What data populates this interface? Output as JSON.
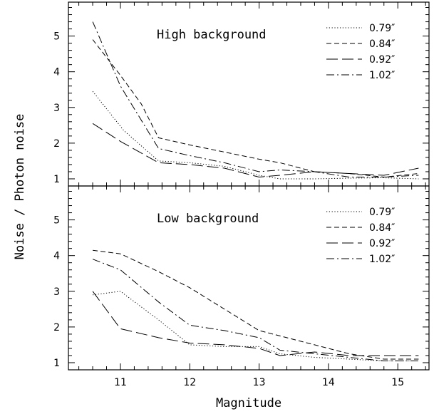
{
  "chart_data": [
    {
      "type": "line",
      "title": "High background",
      "xlabel": "Magnitude",
      "ylabel": "Noise / Photon noise",
      "xlim": [
        10.25,
        15.45
      ],
      "ylim": [
        0.8,
        5.95
      ],
      "x_ticks": [
        11,
        12,
        13,
        14,
        15
      ],
      "y_ticks": [
        1,
        2,
        3,
        4,
        5
      ],
      "legend_position": "top-right",
      "series": [
        {
          "name": "0.79″",
          "dash": "dotted",
          "x": [
            10.6,
            11.05,
            11.55,
            12.0,
            12.5,
            13.0,
            13.3,
            13.8,
            14.3,
            14.8,
            15.3
          ],
          "y": [
            3.45,
            2.35,
            1.5,
            1.45,
            1.35,
            1.1,
            1.0,
            1.0,
            1.02,
            1.03,
            1.0
          ]
        },
        {
          "name": "0.84″",
          "dash": "dashed",
          "x": [
            10.6,
            11.0,
            11.3,
            11.55,
            12.0,
            12.5,
            13.0,
            13.3,
            13.8,
            14.3,
            14.8,
            15.3
          ],
          "y": [
            4.9,
            3.9,
            3.1,
            2.15,
            1.95,
            1.75,
            1.55,
            1.45,
            1.2,
            1.15,
            1.05,
            1.15
          ]
        },
        {
          "name": "0.92″",
          "dash": "longdash",
          "x": [
            10.6,
            11.0,
            11.55,
            12.0,
            12.5,
            13.0,
            13.3,
            13.8,
            14.3,
            14.8,
            15.3
          ],
          "y": [
            2.55,
            2.05,
            1.45,
            1.4,
            1.3,
            1.05,
            1.1,
            1.2,
            1.15,
            1.1,
            1.3
          ]
        },
        {
          "name": "1.02″",
          "dash": "dashdot",
          "x": [
            10.6,
            11.0,
            11.55,
            12.0,
            12.5,
            13.0,
            13.3,
            13.8,
            14.3,
            14.8,
            15.3
          ],
          "y": [
            5.4,
            3.6,
            1.85,
            1.65,
            1.45,
            1.2,
            1.25,
            1.2,
            1.05,
            1.05,
            1.1
          ]
        }
      ]
    },
    {
      "type": "line",
      "title": "Low background",
      "xlabel": "Magnitude",
      "ylabel": "Noise / Photon noise",
      "xlim": [
        10.25,
        15.45
      ],
      "ylim": [
        0.8,
        5.95
      ],
      "x_ticks": [
        11,
        12,
        13,
        14,
        15
      ],
      "y_ticks": [
        1,
        2,
        3,
        4,
        5
      ],
      "legend_position": "top-right",
      "series": [
        {
          "name": "0.79″",
          "dash": "dotted",
          "x": [
            10.6,
            11.0,
            11.55,
            12.0,
            12.5,
            13.0,
            13.3,
            13.8,
            14.3,
            14.8,
            15.3
          ],
          "y": [
            2.9,
            3.0,
            2.2,
            1.5,
            1.45,
            1.45,
            1.25,
            1.15,
            1.1,
            1.05,
            1.05
          ]
        },
        {
          "name": "0.84″",
          "dash": "dashed",
          "x": [
            10.6,
            11.0,
            11.55,
            12.0,
            12.5,
            13.0,
            13.3,
            13.8,
            14.3,
            14.8,
            15.3
          ],
          "y": [
            4.15,
            4.05,
            3.55,
            3.1,
            2.5,
            1.9,
            1.75,
            1.5,
            1.25,
            1.1,
            1.1
          ]
        },
        {
          "name": "0.92″",
          "dash": "longdash",
          "x": [
            10.6,
            11.0,
            11.55,
            12.0,
            12.5,
            13.0,
            13.3,
            13.8,
            14.3,
            14.8,
            15.3
          ],
          "y": [
            3.0,
            1.95,
            1.7,
            1.55,
            1.5,
            1.4,
            1.2,
            1.3,
            1.2,
            1.2,
            1.2
          ]
        },
        {
          "name": "1.02″",
          "dash": "dashdot",
          "x": [
            10.6,
            11.0,
            11.55,
            12.0,
            12.5,
            13.0,
            13.3,
            13.8,
            14.3,
            14.8,
            15.3
          ],
          "y": [
            3.9,
            3.6,
            2.7,
            2.05,
            1.9,
            1.7,
            1.35,
            1.25,
            1.15,
            1.05,
            1.05
          ]
        }
      ]
    }
  ]
}
